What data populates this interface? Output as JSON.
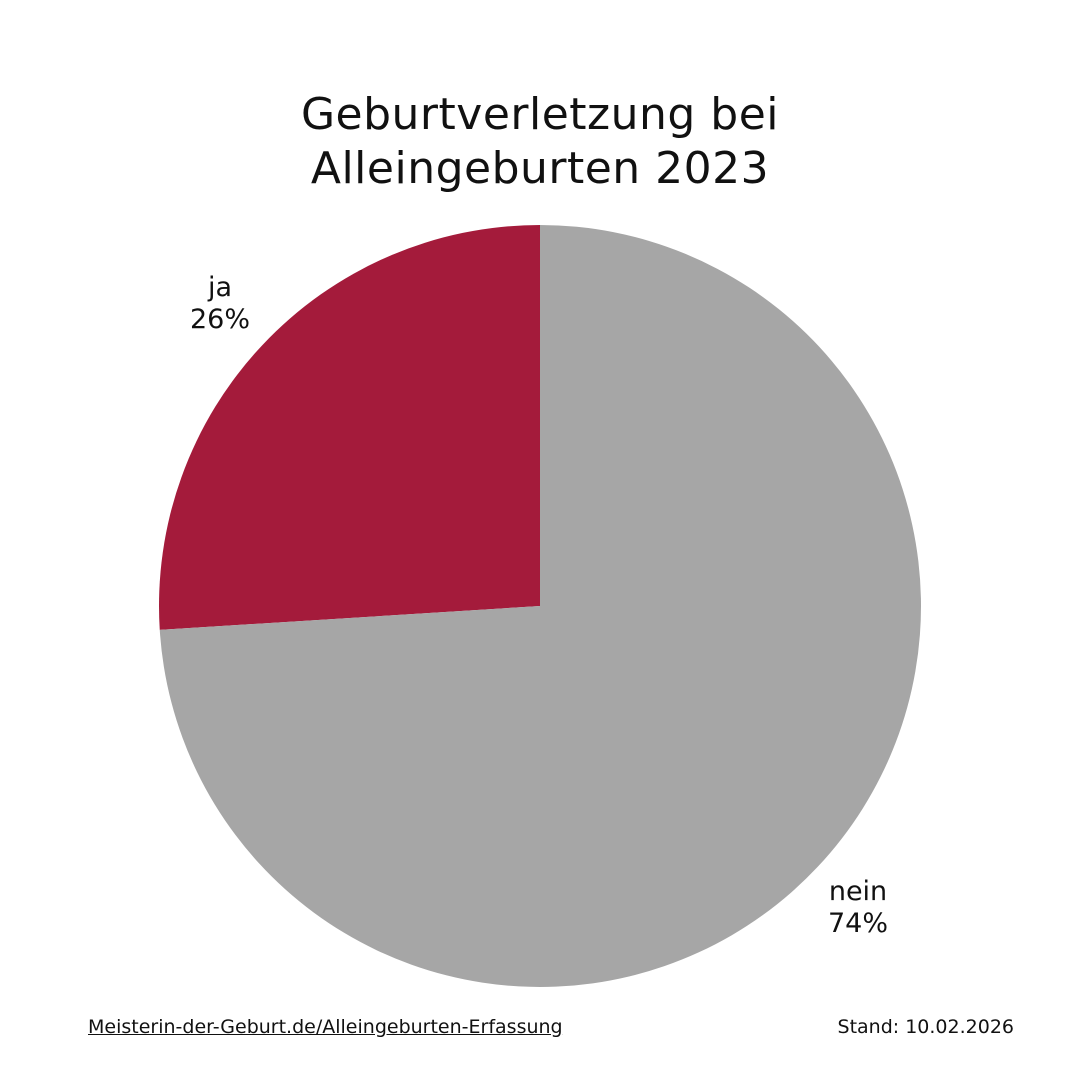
{
  "chart_data": {
    "type": "pie",
    "title": "Geburtverletzung bei Alleingeburten 2023",
    "title_lines": [
      "Geburtverletzung bei",
      "Alleingeburten 2023"
    ],
    "slices": [
      {
        "label": "ja",
        "percent_text": "26%",
        "value": 26,
        "color": "#A41B3B"
      },
      {
        "label": "nein",
        "percent_text": "74%",
        "value": 74,
        "color": "#A6A6A6"
      }
    ],
    "start_angle_deg": 0,
    "direction": "counterclockwise"
  },
  "footer": {
    "source_link": "Meisterin-der-Geburt.de/Alleingeburten-Erfassung",
    "date": "Stand: 10.02.2026"
  }
}
